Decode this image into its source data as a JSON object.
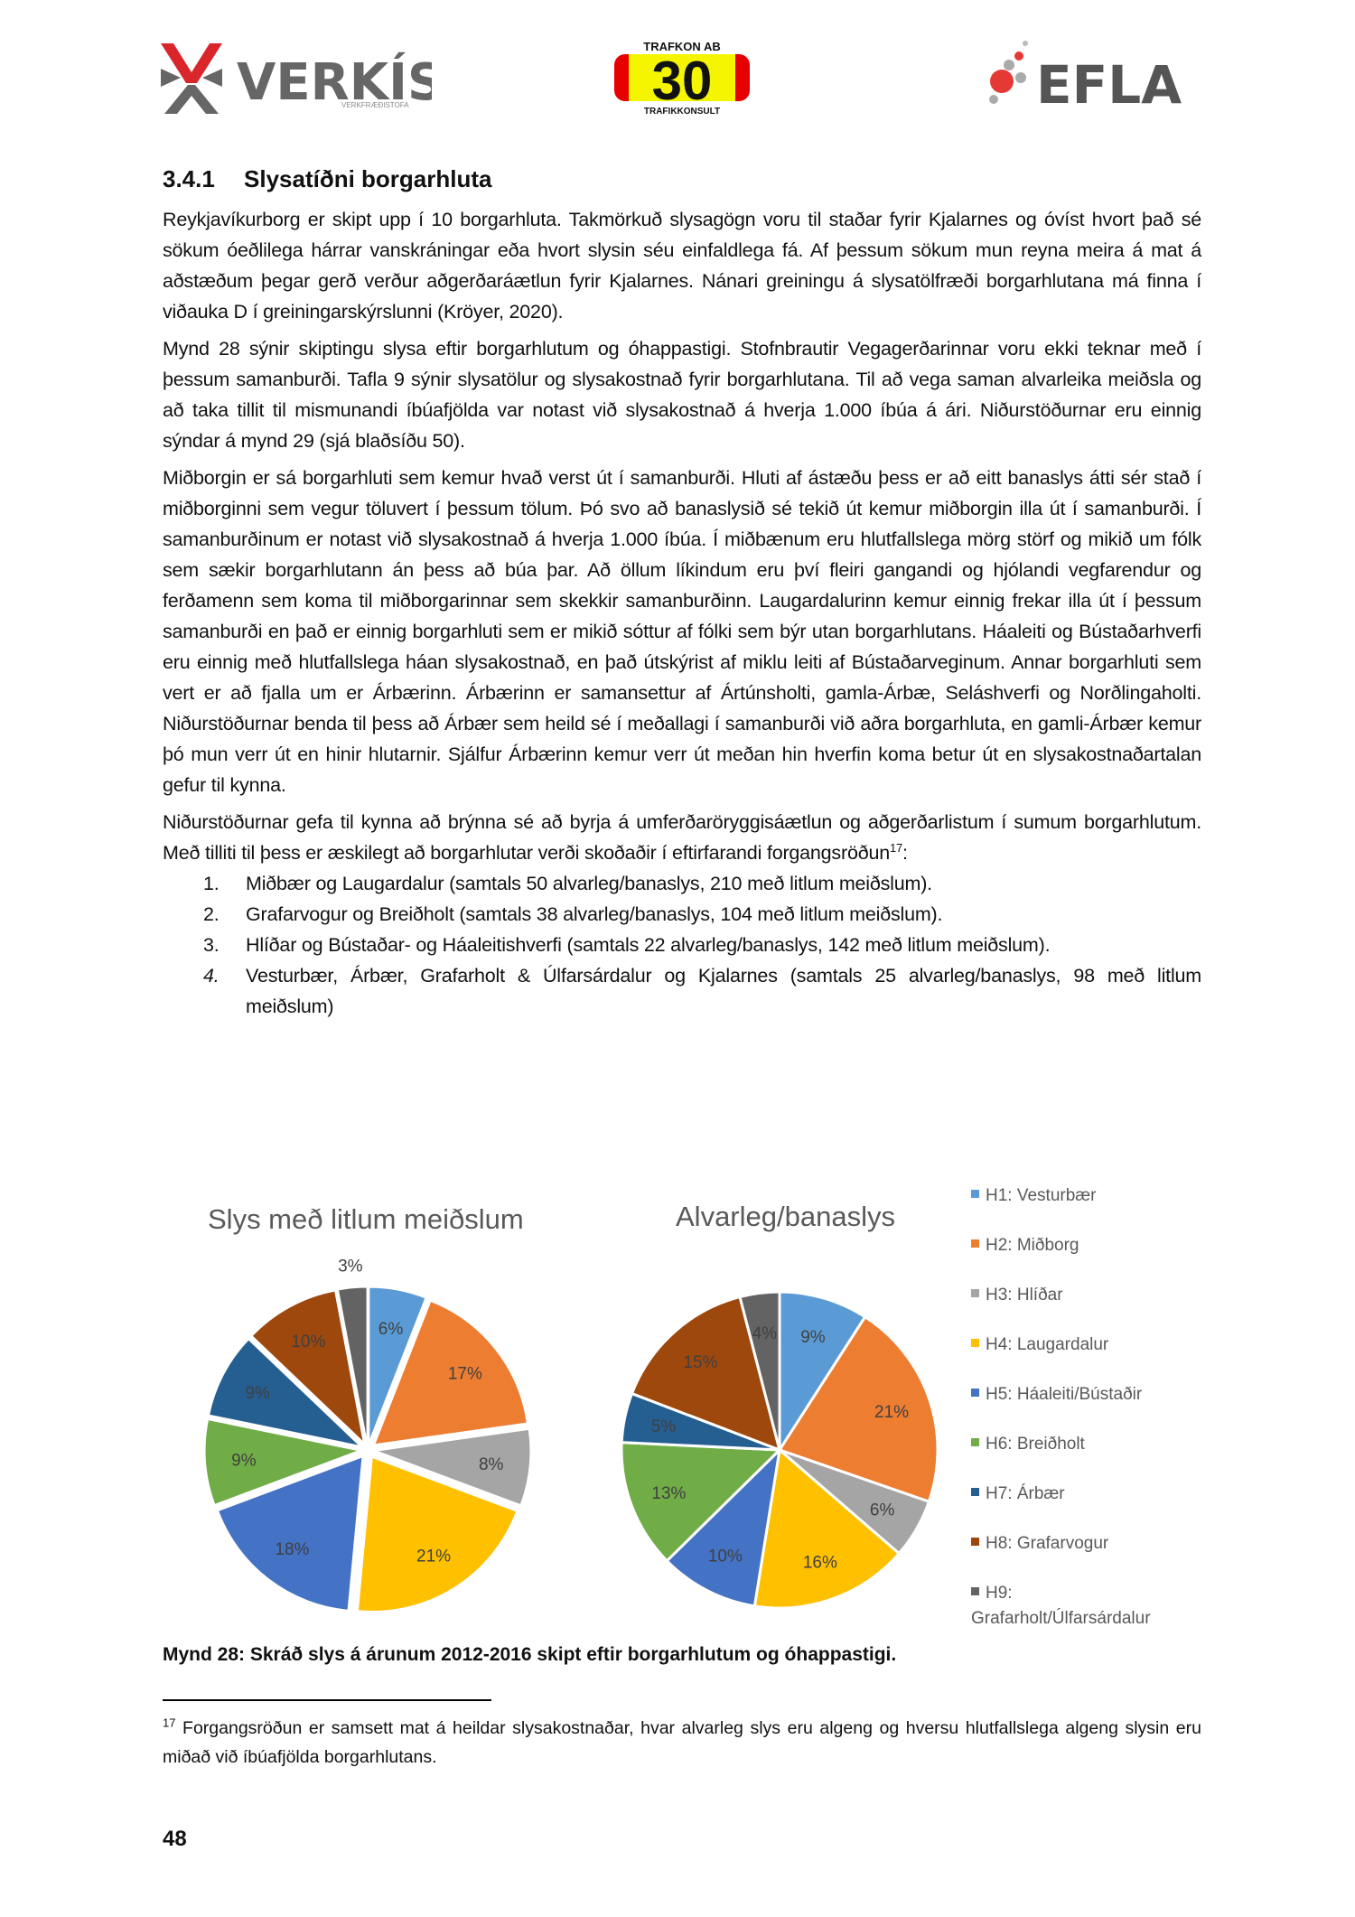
{
  "header": {
    "logos": [
      {
        "name": "VERKÍS",
        "sub": "VERKFRÆÐISTOFA"
      },
      {
        "name": "30",
        "top": "TRAFKON AB",
        "bottom": "TRAFIKKONSULT"
      },
      {
        "name": "EFLA"
      }
    ]
  },
  "section": {
    "number": "3.4.1",
    "title": "Slysatíðni borgarhluta"
  },
  "paragraphs": [
    "Reykjavíkurborg er skipt upp í 10 borgarhluta. Takmörkuð slysagögn voru til staðar fyrir Kjalarnes og óvíst hvort það sé sökum óeðlilega hárrar vanskráningar eða hvort slysin séu einfaldlega fá. Af þessum sökum mun reyna meira á mat á aðstæðum þegar gerð verður aðgerðaráætlun fyrir Kjalarnes. Nánari greiningu á slysatölfræði borgarhlutana má finna í viðauka D í greiningarskýrslunni (Kröyer, 2020).",
    "Mynd 28 sýnir skiptingu slysa eftir borgarhlutum og óhappastigi. Stofnbrautir Vegagerðarinnar voru ekki teknar með í þessum samanburði. Tafla 9 sýnir slysatölur og slysakostnað fyrir borgarhlutana. Til að vega saman alvarleika meiðsla og að taka tillit til mismunandi íbúafjölda var notast við slysakostnað á hverja 1.000 íbúa á ári. Niðurstöðurnar eru einnig sýndar á mynd 29 (sjá blaðsíðu 50).",
    "Miðborgin er sá borgarhluti sem kemur hvað verst út í samanburði. Hluti af ástæðu þess er að eitt banaslys átti sér stað í miðborginni sem vegur töluvert í þessum tölum. Þó svo að banaslysið sé tekið út kemur miðborgin illa út í samanburði. Í samanburðinum er notast við slysakostnað á hverja 1.000 íbúa. Í miðbænum eru hlutfallslega mörg störf og mikið um fólk sem sækir borgarhlutann án þess að búa þar. Að öllum líkindum eru því fleiri gangandi og hjólandi vegfarendur og ferðamenn sem koma til miðborgarinnar sem skekkir samanburðinn. Laugardalurinn kemur einnig frekar illa út í þessum samanburði en það er einnig borgarhluti sem er mikið sóttur af fólki sem býr utan borgarhlutans. Háaleiti og Bústaðarhverfi eru einnig með hlutfallslega háan slysakostnað, en það útskýrist af miklu leiti af Bústaðarveginum. Annar borgarhluti sem vert er að fjalla um er Árbærinn. Árbærinn er samansettur af Ártúnsholti, gamla-Árbæ, Seláshverfi og Norðlingaholti. Niðurstöðurnar benda til þess að Árbær sem heild sé í meðallagi í samanburði við aðra borgarhluta, en gamli-Árbær kemur þó mun verr út en hinir hlutarnir. Sjálfur Árbærinn kemur verr út meðan hin hverfin koma betur út en slysakostnaðartalan gefur til kynna.",
    "Niðurstöðurnar gefa til kynna að brýnna sé að byrja á umferðaröryggisáætlun og aðgerðarlistum í sumum borgarhlutum. Með tilliti til þess er æskilegt að borgarhlutar verði skoðaðir í eftirfarandi forgangsröðun"
  ],
  "footnote_ref": "17",
  "paragraph_end": ":",
  "priority_list": [
    {
      "n": "1.",
      "text": "Miðbær og Laugardalur (samtals 50 alvarleg/banaslys, 210 með litlum meiðslum)."
    },
    {
      "n": "2.",
      "text": "Grafarvogur og Breiðholt (samtals 38 alvarleg/banaslys, 104 með litlum meiðslum)."
    },
    {
      "n": "3.",
      "text": "Hlíðar og Bústaðar- og Háaleitishverfi (samtals 22 alvarleg/banaslys, 142 með litlum meiðslum)."
    },
    {
      "n": "4.",
      "text": "Vesturbær, Árbær, Grafarholt & Úlfarsárdalur og Kjalarnes (samtals 25 alvarleg/banaslys, 98 með litlum meiðslum)"
    }
  ],
  "chart_data": [
    {
      "type": "pie",
      "title": "Slys með litlum meiðslum",
      "exploded": true,
      "categories": [
        "H1: Vesturbær",
        "H2: Miðborg",
        "H3: Hlíðar",
        "H4: Laugardalur",
        "H5: Háaleiti/Bústaðir",
        "H6: Breiðholt",
        "H7: Árbær",
        "H8: Grafarvogur",
        "H9: Grafarholt/Úlfarsárdalur"
      ],
      "values": [
        6,
        17,
        8,
        21,
        18,
        9,
        9,
        10,
        3
      ],
      "labels": [
        "6%",
        "17%",
        "8%",
        "21%",
        "18%",
        "9%",
        "9%",
        "10%",
        "3%"
      ]
    },
    {
      "type": "pie",
      "title": "Alvarleg/banaslys",
      "exploded": false,
      "categories": [
        "H1: Vesturbær",
        "H2: Miðborg",
        "H3: Hlíðar",
        "H4: Laugardalur",
        "H5: Háaleiti/Bústaðir",
        "H6: Breiðholt",
        "H7: Árbær",
        "H8: Grafarvogur",
        "H9: Grafarholt/Úlfarsárdalur"
      ],
      "values": [
        9,
        21,
        6,
        16,
        10,
        13,
        5,
        15,
        4
      ],
      "labels": [
        "9%",
        "21%",
        "6%",
        "16%",
        "10%",
        "13%",
        "5%",
        "15%",
        "4%"
      ]
    }
  ],
  "legend": {
    "placement": "right",
    "items": [
      {
        "label": "H1: Vesturbær",
        "color": "#5B9BD5"
      },
      {
        "label": "H2: Miðborg",
        "color": "#ED7D31"
      },
      {
        "label": "H3: Hlíðar",
        "color": "#A5A5A5"
      },
      {
        "label": "H4: Laugardalur",
        "color": "#FFC000"
      },
      {
        "label": "H5: Háaleiti/Bústaðir",
        "color": "#4472C4"
      },
      {
        "label": "H6: Breiðholt",
        "color": "#70AD47"
      },
      {
        "label": "H7: Árbær",
        "color": "#255E91"
      },
      {
        "label": "H8: Grafarvogur",
        "color": "#9E480E"
      },
      {
        "label": "H9: Grafarholt/Úlfarsárdalur",
        "color": "#636363",
        "line1": "H9:",
        "line2": "Grafarholt/Úlfarsárdalur"
      }
    ]
  },
  "caption": "Mynd 28: Skráð slys á árunum 2012-2016 skipt eftir borgarhlutum og óhappastigi.",
  "footnote": {
    "number": "17",
    "text": " Forgangsröðun er samsett mat á heildar slysakostnaðar, hvar alvarleg slys eru algeng og hversu hlutfallslega algeng slysin eru miðað við íbúafjölda borgarhlutans."
  },
  "page_number": "48"
}
